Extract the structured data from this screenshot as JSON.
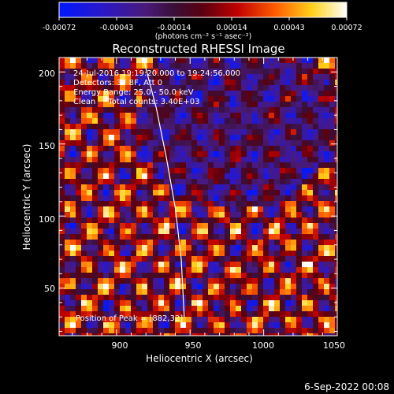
{
  "colorbar": {
    "tick_labels": [
      "-0.00072",
      "-0.00043",
      "-0.00014",
      "0.00014",
      "0.00043",
      "0.00072"
    ],
    "units": "(photons cm⁻² s⁻¹ asec⁻²)",
    "range": [
      -0.00072,
      0.00072
    ],
    "colormap": "blue-purple-red-yellow-white"
  },
  "chart_data": {
    "type": "heatmap",
    "title": "Reconstructed RHESSI Image",
    "xlabel": "Heliocentric X (arcsec)",
    "ylabel": "Heliocentric Y (arcsec)",
    "xlim": [
      861,
      1050
    ],
    "ylim": [
      17,
      210
    ],
    "xticks": [
      900,
      950,
      1000,
      1050
    ],
    "yticks": [
      50,
      100,
      150,
      200
    ],
    "annotations": [
      "24-Jul-2016 19:19:20.000 to 19:24:56.000",
      "Detectors: 3F 8F, Att 0",
      "Energy Range: 25.0 - 50.0 keV",
      "Clean     Total counts: 3.40E+03"
    ],
    "peak_label": "Position of Peak = [882,32]",
    "limb": [
      [
        918,
        210
      ],
      [
        927,
        175
      ],
      [
        934,
        140
      ],
      [
        940,
        105
      ],
      [
        944,
        70
      ],
      [
        946,
        30
      ]
    ]
  },
  "footer": {
    "date": "6-Sep-2022 00:08"
  }
}
